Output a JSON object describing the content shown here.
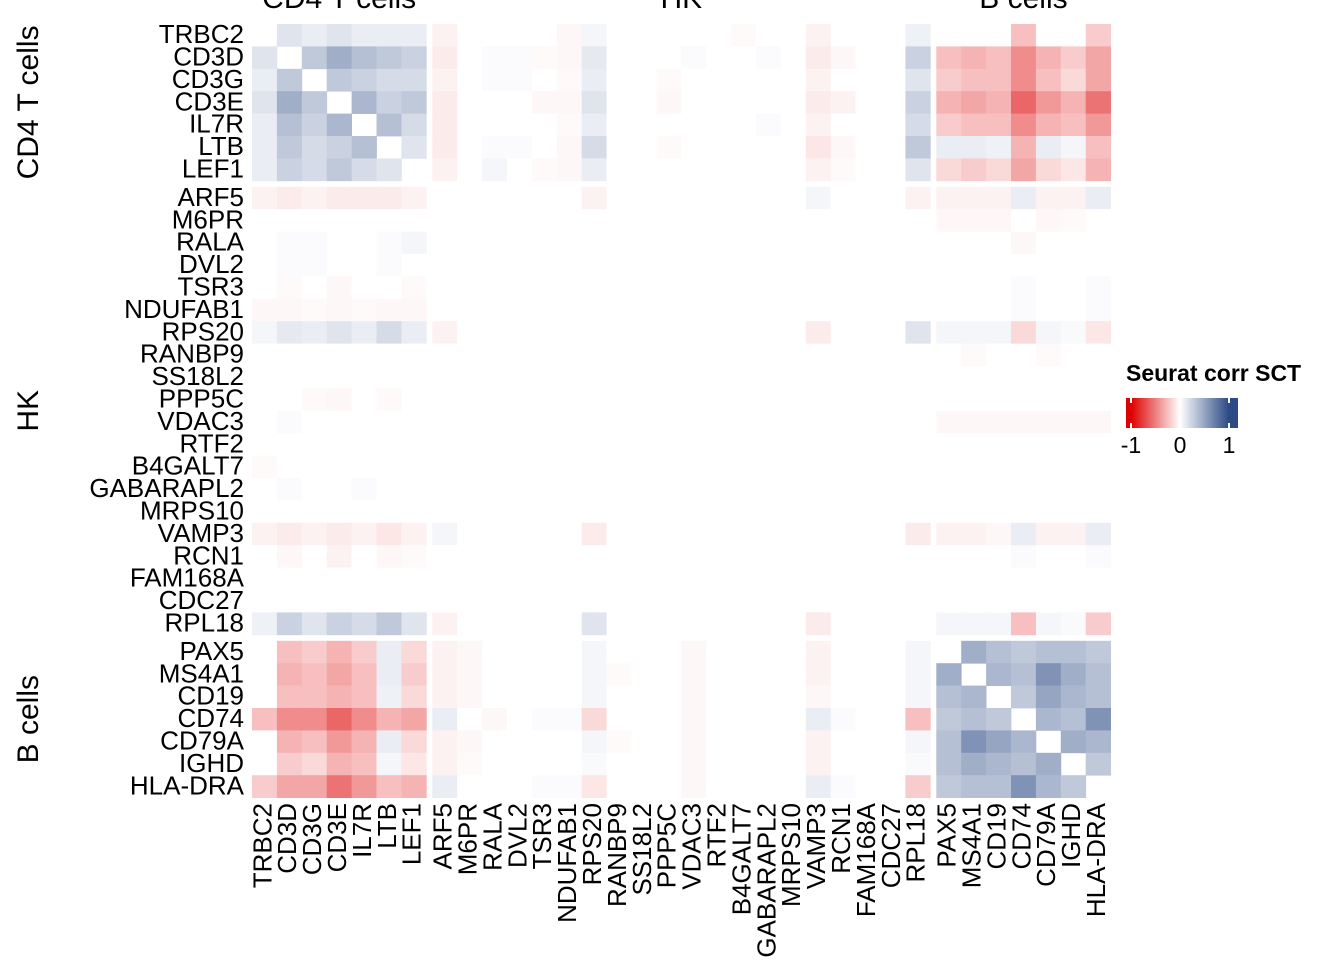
{
  "chart_data": {
    "type": "heatmap",
    "groups": [
      {
        "name": "CD4 T cells",
        "categories": [
          "TRBC2",
          "CD3D",
          "CD3G",
          "CD3E",
          "IL7R",
          "LTB",
          "LEF1"
        ]
      },
      {
        "name": "HK",
        "categories": [
          "ARF5",
          "M6PR",
          "RALA",
          "DVL2",
          "TSR3",
          "NDUFAB1",
          "RPS20",
          "RANBP9",
          "SS18L2",
          "PPP5C",
          "VDAC3",
          "RTF2",
          "B4GALT7",
          "GABARAPL2",
          "MRPS10",
          "VAMP3",
          "RCN1",
          "FAM168A",
          "CDC27",
          "RPL18"
        ]
      },
      {
        "name": "B cells",
        "categories": [
          "PAX5",
          "MS4A1",
          "CD19",
          "CD74",
          "CD79A",
          "IGHD",
          "HLA-DRA"
        ]
      }
    ],
    "values": [
      [
        null,
        0.15,
        0.1,
        0.15,
        0.1,
        0.1,
        0.1,
        -0.05,
        0,
        0,
        0,
        0,
        -0.03,
        0.05,
        0,
        0,
        0,
        0,
        0,
        -0.02,
        0,
        0,
        -0.05,
        0,
        0,
        0,
        0.08,
        0,
        0,
        0,
        -0.25,
        0,
        0,
        -0.2
      ],
      [
        0.15,
        null,
        0.3,
        0.45,
        0.35,
        0.3,
        0.25,
        -0.08,
        0,
        0.02,
        0.02,
        -0.02,
        -0.03,
        0.12,
        0,
        0,
        0,
        0.02,
        0,
        0,
        0.02,
        0,
        -0.08,
        -0.03,
        0,
        0,
        0.25,
        -0.25,
        -0.3,
        -0.25,
        -0.45,
        -0.3,
        -0.2,
        -0.35
      ],
      [
        0.1,
        0.3,
        null,
        0.3,
        0.25,
        0.2,
        0.2,
        -0.05,
        0,
        0.02,
        0.02,
        0,
        -0.02,
        0.1,
        0,
        0,
        -0.02,
        0,
        0,
        0,
        0,
        0,
        -0.05,
        0,
        0,
        0,
        0.15,
        -0.2,
        -0.25,
        -0.25,
        -0.45,
        -0.25,
        -0.15,
        -0.35
      ],
      [
        0.15,
        0.45,
        0.3,
        null,
        0.4,
        0.25,
        0.3,
        -0.08,
        0,
        0,
        0,
        -0.03,
        -0.03,
        0.15,
        0,
        0,
        -0.03,
        0,
        0,
        0,
        0,
        0,
        -0.08,
        -0.05,
        0,
        0,
        0.25,
        -0.3,
        -0.35,
        -0.3,
        -0.6,
        -0.4,
        -0.3,
        -0.55
      ],
      [
        0.1,
        0.35,
        0.25,
        0.4,
        null,
        0.35,
        0.2,
        -0.08,
        0,
        0,
        0,
        0,
        -0.02,
        0.1,
        0,
        0,
        0,
        0,
        0,
        0,
        0.02,
        0,
        -0.05,
        0,
        0,
        0,
        0.2,
        -0.2,
        -0.25,
        -0.25,
        -0.45,
        -0.3,
        -0.25,
        -0.4
      ],
      [
        0.1,
        0.3,
        0.2,
        0.25,
        0.35,
        null,
        0.15,
        -0.08,
        0,
        0.02,
        0.02,
        0,
        -0.03,
        0.2,
        0,
        0,
        -0.02,
        0,
        0,
        0,
        0,
        0,
        -0.1,
        -0.03,
        0,
        0,
        0.3,
        0.1,
        0.1,
        0.08,
        -0.3,
        0.1,
        0.05,
        -0.25
      ],
      [
        0.1,
        0.25,
        0.2,
        0.3,
        0.2,
        0.15,
        null,
        -0.05,
        0,
        0.05,
        0,
        -0.02,
        -0.03,
        0.1,
        0,
        0,
        0,
        0,
        0,
        0,
        0,
        0,
        -0.05,
        -0.02,
        0,
        0,
        0.15,
        -0.15,
        -0.2,
        -0.15,
        -0.35,
        -0.15,
        -0.1,
        -0.3
      ],
      [
        -0.05,
        -0.08,
        -0.05,
        -0.08,
        -0.08,
        -0.08,
        -0.05,
        null,
        0,
        0,
        0,
        0,
        0,
        -0.05,
        0,
        0,
        0,
        0,
        0,
        0,
        0,
        0,
        0.05,
        0,
        0,
        0,
        -0.05,
        -0.05,
        -0.05,
        -0.05,
        0.1,
        -0.05,
        -0.05,
        0.1
      ],
      [
        0,
        0,
        0,
        0,
        0,
        0,
        0,
        0,
        null,
        0,
        0,
        0,
        0,
        0,
        0,
        0,
        0,
        0,
        0,
        0,
        0,
        0,
        0,
        0,
        0,
        0,
        0,
        -0.03,
        -0.03,
        -0.03,
        0,
        -0.03,
        -0.02,
        0
      ],
      [
        0,
        0.02,
        0.02,
        0,
        0,
        0.02,
        0.05,
        0,
        0,
        null,
        0,
        0,
        0,
        0,
        0,
        0,
        0,
        0,
        0,
        0,
        0,
        0,
        0,
        0,
        0,
        0,
        0,
        0,
        0,
        0,
        -0.03,
        0,
        0,
        0
      ],
      [
        0,
        0.02,
        0.02,
        0,
        0,
        0.02,
        0,
        0,
        0,
        0,
        null,
        0,
        0,
        0,
        0,
        0,
        0,
        0,
        0,
        0,
        0,
        0,
        0,
        0,
        0,
        0,
        0,
        0,
        0,
        0,
        0,
        0,
        0,
        0
      ],
      [
        0,
        -0.02,
        0,
        -0.03,
        0,
        0,
        -0.02,
        0,
        0,
        0,
        0,
        null,
        0,
        0,
        0,
        0,
        0,
        0,
        0,
        0,
        0,
        0,
        0,
        0,
        0,
        0,
        0,
        0,
        0,
        0,
        0.02,
        0,
        0,
        0.02
      ],
      [
        -0.03,
        -0.03,
        -0.02,
        -0.03,
        -0.02,
        -0.03,
        -0.03,
        0,
        0,
        0,
        0,
        0,
        null,
        0,
        0,
        0,
        0,
        0,
        0,
        0,
        0,
        0,
        0,
        0,
        0,
        0,
        0,
        0,
        0,
        0,
        0.02,
        0,
        0,
        0.02
      ],
      [
        0.05,
        0.12,
        0.1,
        0.15,
        0.1,
        0.2,
        0.1,
        -0.05,
        0,
        0,
        0,
        0,
        0,
        null,
        0,
        0,
        0,
        0,
        0,
        0,
        0,
        0,
        -0.08,
        0,
        0,
        0,
        0.15,
        0.05,
        0.05,
        0.05,
        -0.15,
        0.05,
        0.03,
        -0.1
      ],
      [
        0,
        0,
        0,
        0,
        0,
        0,
        0,
        0,
        0,
        0,
        0,
        0,
        0,
        0,
        null,
        0,
        0,
        0,
        0,
        0,
        0,
        0,
        0,
        0,
        0,
        0,
        0,
        0,
        -0.02,
        0,
        0,
        -0.02,
        0,
        0
      ],
      [
        0,
        0,
        0,
        0,
        0,
        0,
        0,
        0,
        0,
        0,
        0,
        0,
        0,
        0,
        0,
        null,
        0,
        0,
        0,
        0,
        0,
        0,
        0,
        0,
        0,
        0,
        0,
        0,
        0,
        0,
        0,
        0,
        0,
        0
      ],
      [
        0,
        0,
        -0.02,
        -0.03,
        0,
        -0.02,
        0,
        0,
        0,
        0,
        0,
        0,
        0,
        0,
        0,
        0,
        null,
        0,
        0,
        0,
        0,
        0,
        0,
        0,
        0,
        0,
        0,
        0,
        0,
        0,
        0,
        0,
        0,
        0
      ],
      [
        0,
        0.02,
        0,
        0,
        0,
        0,
        0,
        0,
        0,
        0,
        0,
        0,
        0,
        0,
        0,
        0,
        0,
        null,
        0,
        0,
        0,
        0,
        0,
        0,
        0,
        0,
        0,
        -0.03,
        -0.03,
        -0.03,
        -0.03,
        -0.03,
        -0.03,
        -0.03
      ],
      [
        0,
        0,
        0,
        0,
        0,
        0,
        0,
        0,
        0,
        0,
        0,
        0,
        0,
        0,
        0,
        0,
        0,
        0,
        null,
        0,
        0,
        0,
        0,
        0,
        0,
        0,
        0,
        0,
        0,
        0,
        0,
        0,
        0,
        0
      ],
      [
        -0.02,
        0,
        0,
        0,
        0,
        0,
        0,
        0,
        0,
        0,
        0,
        0,
        0,
        0,
        0,
        0,
        0,
        0,
        0,
        null,
        0,
        0,
        0,
        0,
        0,
        0,
        0,
        0,
        0,
        0,
        0,
        0,
        0,
        0
      ],
      [
        0,
        0.02,
        0,
        0,
        0.02,
        0,
        0,
        0,
        0,
        0,
        0,
        0,
        0,
        0,
        0,
        0,
        0,
        0,
        0,
        0,
        null,
        0,
        0,
        0,
        0,
        0,
        0,
        0,
        0,
        0,
        0,
        0,
        0,
        0
      ],
      [
        0,
        0,
        0,
        0,
        0,
        0,
        0,
        0,
        0,
        0,
        0,
        0,
        0,
        0,
        0,
        0,
        0,
        0,
        0,
        0,
        0,
        null,
        0,
        0,
        0,
        0,
        0,
        0,
        0,
        0,
        0,
        0,
        0,
        0
      ],
      [
        -0.05,
        -0.08,
        -0.05,
        -0.08,
        -0.05,
        -0.1,
        -0.05,
        0.05,
        0,
        0,
        0,
        0,
        0,
        -0.08,
        0,
        0,
        0,
        0,
        0,
        0,
        0,
        0,
        null,
        0,
        0,
        0,
        -0.08,
        -0.05,
        -0.05,
        -0.03,
        0.1,
        -0.05,
        -0.05,
        0.1
      ],
      [
        0,
        -0.03,
        0,
        -0.05,
        0,
        -0.03,
        -0.02,
        0,
        0,
        0,
        0,
        0,
        0,
        0,
        0,
        0,
        0,
        0,
        0,
        0,
        0,
        0,
        0,
        null,
        0,
        0,
        0,
        0,
        0,
        0,
        0.02,
        0,
        0,
        0.02
      ],
      [
        0,
        0,
        0,
        0,
        0,
        0,
        0,
        0,
        0,
        0,
        0,
        0,
        0,
        0,
        0,
        0,
        0,
        0,
        0,
        0,
        0,
        0,
        0,
        0,
        null,
        0,
        0,
        0,
        0,
        0,
        0,
        0,
        0,
        0
      ],
      [
        0,
        0,
        0,
        0,
        0,
        0,
        0,
        0,
        0,
        0,
        0,
        0,
        0,
        0,
        0,
        0,
        0,
        0,
        0,
        0,
        0,
        0,
        0,
        0,
        0,
        null,
        0,
        0,
        0,
        0,
        0,
        0,
        0,
        0
      ],
      [
        0.08,
        0.25,
        0.15,
        0.25,
        0.2,
        0.3,
        0.15,
        -0.05,
        0,
        0,
        0,
        0,
        0,
        0.15,
        0,
        0,
        0,
        0,
        0,
        0,
        0,
        0,
        -0.08,
        0,
        0,
        0,
        null,
        0.05,
        0.05,
        0.05,
        -0.25,
        0.05,
        0.03,
        -0.2
      ],
      [
        0,
        -0.25,
        -0.2,
        -0.3,
        -0.2,
        0.1,
        -0.15,
        -0.05,
        -0.03,
        0,
        0,
        0,
        0,
        0.05,
        0,
        0,
        0,
        -0.03,
        0,
        0,
        0,
        0,
        -0.05,
        0,
        0,
        0,
        0.05,
        null,
        0.45,
        0.35,
        0.3,
        0.35,
        0.35,
        0.3
      ],
      [
        0,
        -0.3,
        -0.25,
        -0.35,
        -0.25,
        0.1,
        -0.2,
        -0.05,
        -0.03,
        0,
        0,
        0,
        0,
        0.05,
        -0.02,
        0,
        0,
        -0.03,
        0,
        0,
        0,
        0,
        -0.05,
        0,
        0,
        0,
        0.05,
        0.45,
        null,
        0.4,
        0.35,
        0.6,
        0.45,
        0.35
      ],
      [
        0,
        -0.25,
        -0.25,
        -0.3,
        -0.25,
        0.08,
        -0.15,
        -0.05,
        -0.03,
        0,
        0,
        0,
        0,
        0.05,
        0,
        0,
        0,
        -0.03,
        0,
        0,
        0,
        0,
        -0.03,
        0,
        0,
        0,
        0.05,
        0.35,
        0.4,
        null,
        0.3,
        0.5,
        0.4,
        0.35
      ],
      [
        -0.25,
        -0.45,
        -0.45,
        -0.6,
        -0.45,
        -0.3,
        -0.35,
        0.1,
        0,
        -0.03,
        0,
        0.02,
        0.02,
        -0.15,
        0,
        0,
        0,
        -0.03,
        0,
        0,
        0,
        0,
        0.1,
        0.02,
        0,
        0,
        -0.25,
        0.3,
        0.35,
        0.3,
        null,
        0.4,
        0.35,
        0.6
      ],
      [
        0,
        -0.3,
        -0.25,
        -0.4,
        -0.3,
        0.1,
        -0.15,
        -0.05,
        -0.03,
        0,
        0,
        0,
        0,
        0.05,
        -0.02,
        0,
        0,
        -0.03,
        0,
        0,
        0,
        0,
        -0.05,
        0,
        0,
        0,
        0.05,
        0.35,
        0.6,
        0.5,
        0.4,
        null,
        0.45,
        0.4
      ],
      [
        0,
        -0.2,
        -0.15,
        -0.3,
        -0.25,
        0.05,
        -0.1,
        -0.05,
        -0.02,
        0,
        0,
        0,
        0,
        0.03,
        0,
        0,
        0,
        -0.03,
        0,
        0,
        0,
        0,
        -0.05,
        0,
        0,
        0,
        0.03,
        0.35,
        0.45,
        0.4,
        0.35,
        0.45,
        null,
        0.3
      ],
      [
        -0.2,
        -0.35,
        -0.35,
        -0.55,
        -0.4,
        -0.25,
        -0.3,
        0.1,
        0,
        0,
        0,
        0.02,
        0.02,
        -0.1,
        0,
        0,
        0,
        -0.03,
        0,
        0,
        0,
        0,
        0.1,
        0.02,
        0,
        0,
        -0.2,
        0.3,
        0.35,
        0.35,
        0.6,
        0.4,
        0.3,
        null
      ]
    ],
    "zlim": [
      -1,
      1
    ],
    "colors": {
      "low": "#dd0000",
      "mid": "#ffffff",
      "high": "#2c4a85"
    },
    "legend_title": "Seurat corr SCT",
    "legend_ticks": [
      -1,
      0,
      1
    ]
  }
}
